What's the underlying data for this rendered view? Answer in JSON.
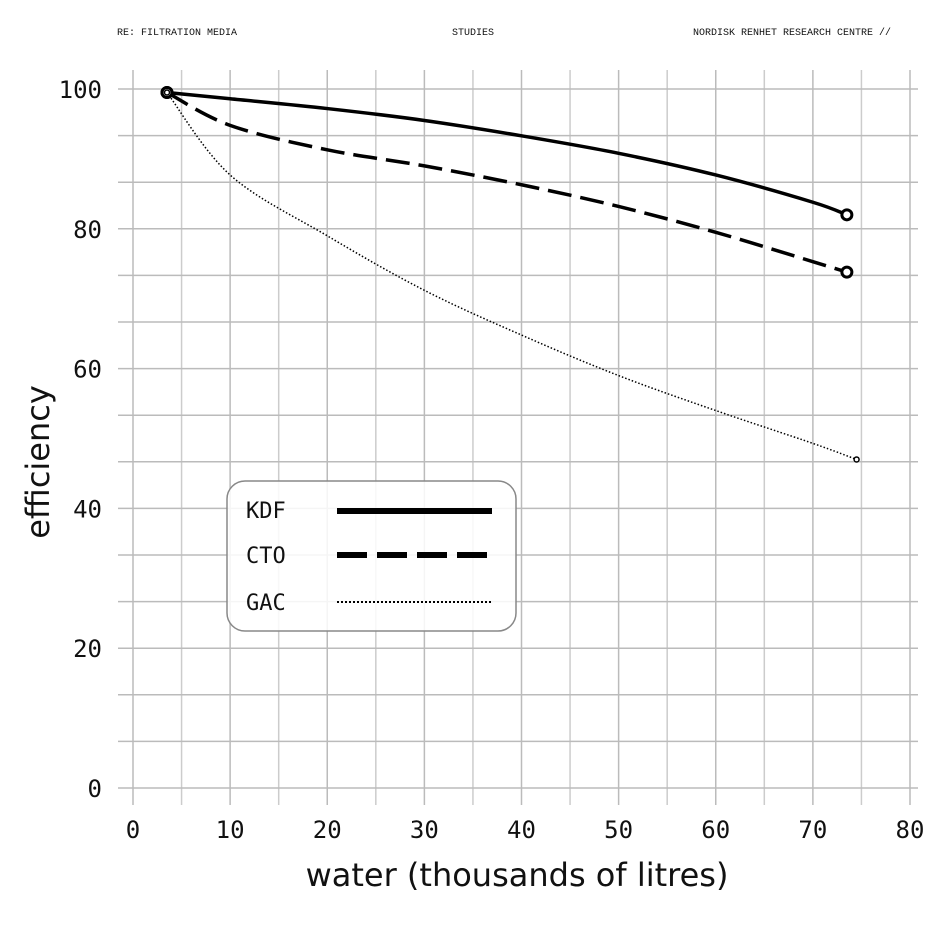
{
  "header": {
    "left": "RE: FILTRATION MEDIA",
    "center": "STUDIES",
    "right": "NORDISK RENHET RESEARCH CENTRE //"
  },
  "chart_data": {
    "type": "line",
    "title": "",
    "xlabel": "water (thousands of litres)",
    "ylabel": "efficiency",
    "xlim": [
      0,
      80
    ],
    "ylim": [
      0,
      100
    ],
    "xticks": [
      0,
      10,
      20,
      30,
      40,
      50,
      60,
      70,
      80
    ],
    "yticks": [
      0,
      20,
      40,
      60,
      80,
      100
    ],
    "grid": true,
    "legend_position": "lower-left",
    "series": [
      {
        "name": "KDF",
        "style": "solid",
        "x": [
          3.5,
          10,
          20,
          30,
          40,
          50,
          60,
          70,
          73.5
        ],
        "y": [
          99.5,
          98.6,
          97.2,
          95.5,
          93.3,
          90.8,
          87.7,
          83.8,
          82
        ]
      },
      {
        "name": "CTO",
        "style": "dashed",
        "x": [
          3.5,
          10,
          20,
          30,
          40,
          50,
          60,
          70,
          73.5
        ],
        "y": [
          99.5,
          94.8,
          91.3,
          89,
          86.3,
          83.2,
          79.5,
          75.3,
          73.8
        ]
      },
      {
        "name": "GAC",
        "style": "dotted",
        "x": [
          3.5,
          10,
          20,
          30,
          40,
          50,
          60,
          70,
          74.5
        ],
        "y": [
          99.5,
          87.7,
          79,
          71.2,
          64.8,
          59,
          54,
          49.3,
          47
        ]
      }
    ]
  }
}
